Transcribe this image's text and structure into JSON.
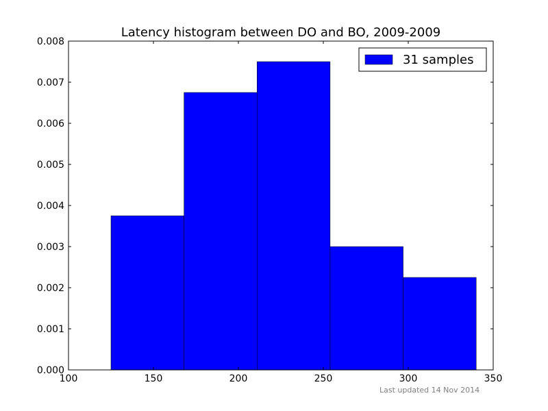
{
  "chart_data": {
    "type": "bar",
    "title": "Latency histogram between DO and BO, 2009-2009",
    "xlabel": "",
    "ylabel": "",
    "xlim": [
      100,
      350
    ],
    "ylim": [
      0,
      0.008
    ],
    "x_ticks": [
      "100",
      "150",
      "200",
      "250",
      "300",
      "350"
    ],
    "y_ticks": [
      "0.000",
      "0.001",
      "0.002",
      "0.003",
      "0.004",
      "0.005",
      "0.006",
      "0.007",
      "0.008"
    ],
    "bins": [
      {
        "start": 125,
        "end": 168,
        "value": 0.00375
      },
      {
        "start": 168,
        "end": 211,
        "value": 0.00675
      },
      {
        "start": 211,
        "end": 254,
        "value": 0.0075
      },
      {
        "start": 254,
        "end": 297,
        "value": 0.003
      },
      {
        "start": 297,
        "end": 340,
        "value": 0.00225
      }
    ],
    "series": [
      {
        "name": "31 samples",
        "color": "#0000ff"
      }
    ],
    "legend_position": "top-right",
    "grid": false
  },
  "footer": {
    "text": "Last updated 14 Nov 2014"
  }
}
